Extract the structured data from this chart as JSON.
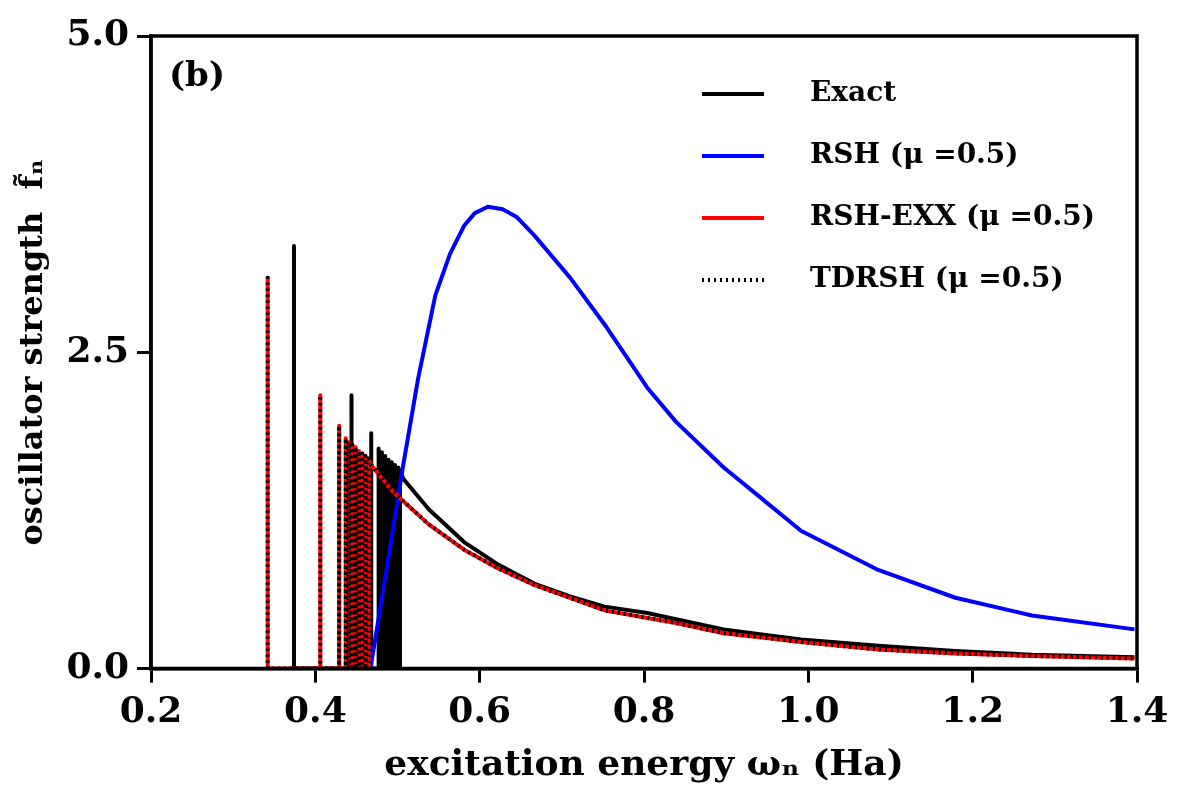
{
  "chart_data": {
    "type": "line",
    "xlabel": "excitation energy ωₙ (Ha)",
    "ylabel": "oscillator strength  f̃ₙ",
    "annotations": [
      "(b)"
    ],
    "xlim": [
      0.2,
      1.4
    ],
    "xticks": [
      0.2,
      0.4,
      0.6,
      0.8,
      {
        "value": 1,
        "label": "1.0"
      },
      1.2,
      1.4
    ],
    "ylim": [
      0,
      5
    ],
    "yticks": [
      {
        "value": 0,
        "label": "0.0"
      },
      2.5,
      {
        "value": 5,
        "label": "5.0"
      }
    ],
    "grid": false,
    "legend": "top right",
    "marker": "none",
    "series": [
      {
        "name": "Exact",
        "color": "#000000",
        "x": [
          0.374,
          0.374,
          0.374,
          0.444,
          0.444,
          0.444,
          0.468,
          0.468,
          0.468,
          0.477,
          0.477,
          0.477,
          0.481,
          0.481,
          0.481,
          0.485,
          0.485,
          0.485,
          0.489,
          0.489,
          0.489,
          0.493,
          0.493,
          0.493,
          0.497,
          0.497,
          0.497,
          0.501,
          0.501,
          0.501,
          0.503,
          0.503,
          0.507,
          0.538,
          0.581,
          0.623,
          0.667,
          0.71,
          0.752,
          0.804,
          0.839,
          0.897,
          0.991,
          1.085,
          1.179,
          1.272,
          1.397
        ],
        "values": [
          0,
          3.34,
          0,
          0,
          2.16,
          0,
          0,
          1.86,
          0,
          0,
          1.74,
          0,
          0,
          1.71,
          0,
          0,
          1.68,
          0,
          0,
          1.65,
          0,
          0,
          1.63,
          0,
          0,
          1.61,
          0,
          0,
          1.59,
          0,
          0,
          1.57,
          1.5,
          1.26,
          1.0,
          0.82,
          0.67,
          0.57,
          0.49,
          0.44,
          0.39,
          0.31,
          0.23,
          0.18,
          0.14,
          0.11,
          0.09
        ]
      },
      {
        "name": "RSH (μ =0.5)",
        "color": "#0000ff",
        "x": [
          0.467,
          0.49,
          0.507,
          0.525,
          0.546,
          0.564,
          0.581,
          0.594,
          0.61,
          0.628,
          0.645,
          0.667,
          0.71,
          0.752,
          0.804,
          0.839,
          0.897,
          0.991,
          1.085,
          1.179,
          1.272,
          1.397
        ],
        "values": [
          0,
          0.92,
          1.61,
          2.29,
          2.95,
          3.28,
          3.5,
          3.6,
          3.65,
          3.63,
          3.57,
          3.42,
          3.09,
          2.72,
          2.22,
          1.95,
          1.59,
          1.09,
          0.78,
          0.56,
          0.42,
          0.31
        ]
      },
      {
        "name": "RSH-EXX (μ =0.5)",
        "color": "#ff0000",
        "x": [
          0.342,
          0.342,
          0.342,
          0.406,
          0.406,
          0.406,
          0.429,
          0.429,
          0.429,
          0.437,
          0.437,
          0.437,
          0.441,
          0.441,
          0.441,
          0.445,
          0.445,
          0.445,
          0.449,
          0.449,
          0.449,
          0.453,
          0.453,
          0.453,
          0.457,
          0.457,
          0.457,
          0.461,
          0.461,
          0.461,
          0.465,
          0.465,
          0.468,
          0.494,
          0.538,
          0.581,
          0.623,
          0.667,
          0.752,
          0.804,
          0.839,
          0.897,
          0.991,
          1.085,
          1.179,
          1.272,
          1.397
        ],
        "values": [
          0,
          3.09,
          0,
          0,
          2.16,
          0,
          0,
          1.92,
          0,
          0,
          1.82,
          0,
          0,
          1.79,
          0,
          0,
          1.77,
          0,
          0,
          1.75,
          0,
          0,
          1.72,
          0,
          0,
          1.7,
          0,
          0,
          1.68,
          0,
          0,
          1.66,
          1.61,
          1.4,
          1.14,
          0.94,
          0.79,
          0.66,
          0.46,
          0.4,
          0.36,
          0.28,
          0.21,
          0.15,
          0.12,
          0.1,
          0.08
        ]
      },
      {
        "name": "TDRSH (μ =0.5)",
        "color": "#000000",
        "line_style": "dotted",
        "x": [
          0.342,
          0.342,
          0.342,
          0.406,
          0.406,
          0.406,
          0.429,
          0.429,
          0.429,
          0.437,
          0.437,
          0.437,
          0.441,
          0.441,
          0.441,
          0.445,
          0.445,
          0.445,
          0.449,
          0.449,
          0.449,
          0.453,
          0.453,
          0.453,
          0.457,
          0.457,
          0.457,
          0.461,
          0.461,
          0.461,
          0.465,
          0.465,
          0.468,
          0.494,
          0.538,
          0.581,
          0.623,
          0.667,
          0.752,
          0.804,
          0.839,
          0.897,
          0.991,
          1.085,
          1.179,
          1.272,
          1.397
        ],
        "values": [
          0,
          3.09,
          0,
          0,
          2.16,
          0,
          0,
          1.92,
          0,
          0,
          1.82,
          0,
          0,
          1.79,
          0,
          0,
          1.77,
          0,
          0,
          1.75,
          0,
          0,
          1.72,
          0,
          0,
          1.7,
          0,
          0,
          1.68,
          0,
          0,
          1.66,
          1.61,
          1.4,
          1.14,
          0.94,
          0.79,
          0.66,
          0.46,
          0.4,
          0.36,
          0.28,
          0.21,
          0.15,
          0.12,
          0.1,
          0.08
        ]
      }
    ]
  }
}
